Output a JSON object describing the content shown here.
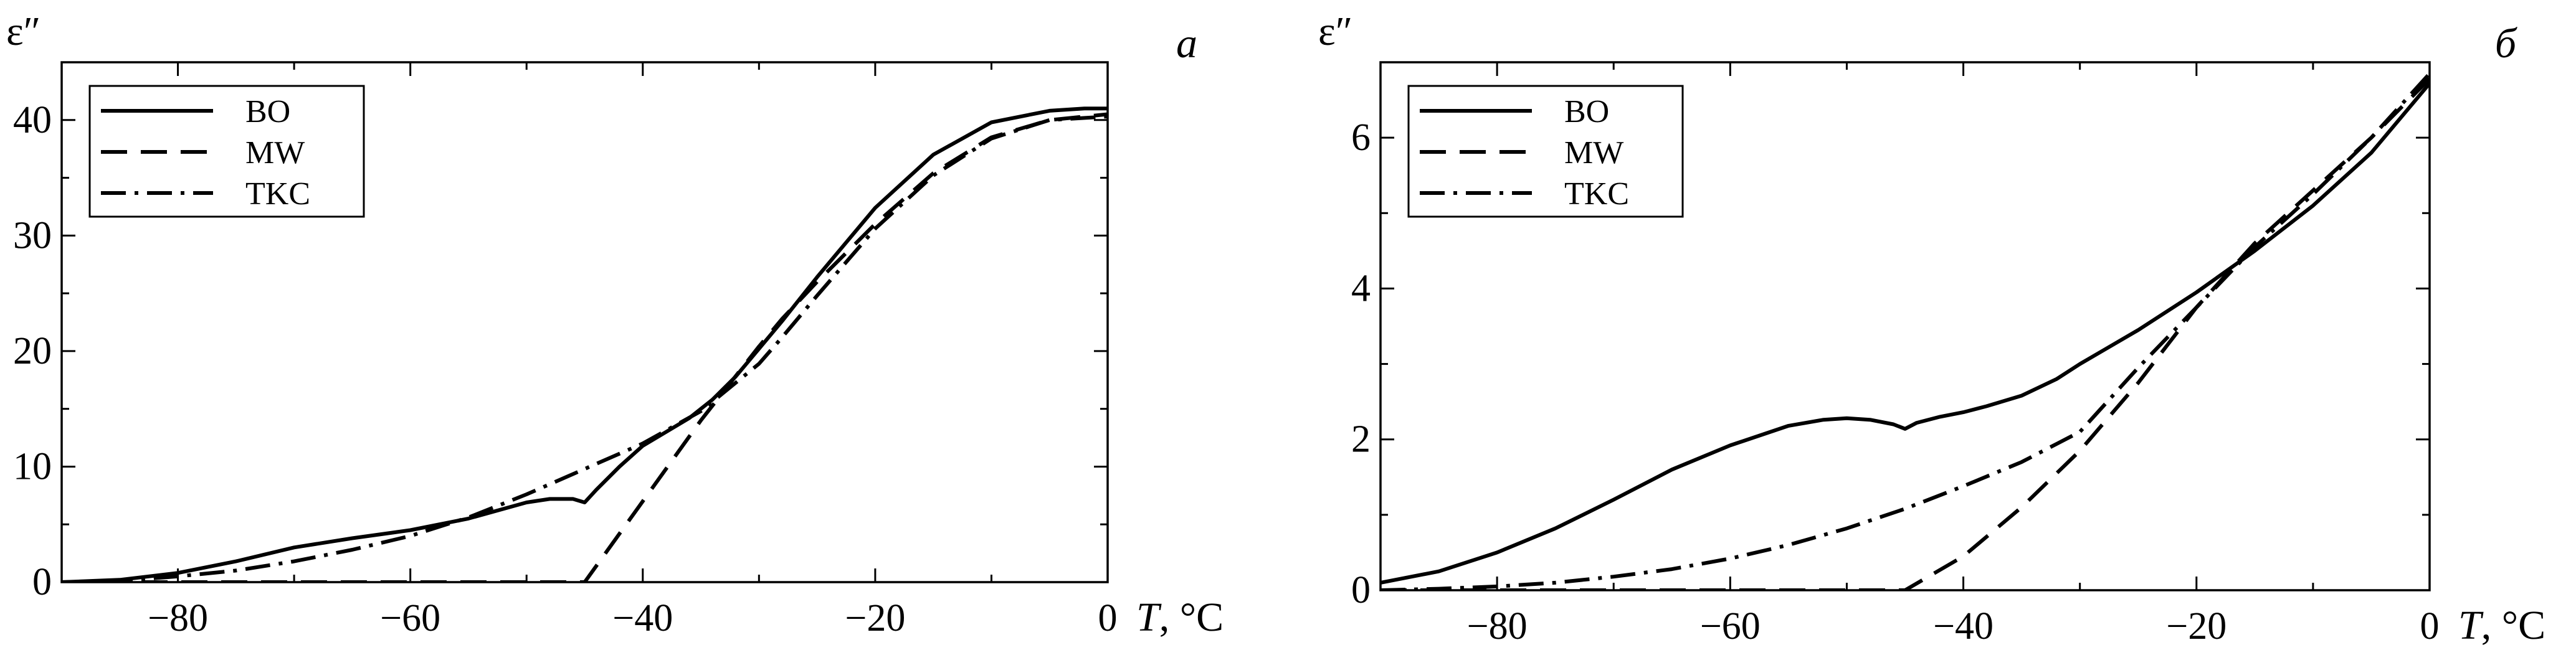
{
  "chart_data": [
    {
      "type": "line",
      "panel_label": "а",
      "ylabel": "ε″",
      "xlabel_symbol": "T",
      "xlabel_unit": ", °C",
      "xlim": [
        -90,
        0
      ],
      "ylim": [
        0,
        45
      ],
      "x_ticks": [
        -80,
        -60,
        -40,
        -20,
        0
      ],
      "x_tick_labels": [
        "−80",
        "−60",
        "−40",
        "−20",
        "0"
      ],
      "y_ticks": [
        0,
        10,
        20,
        30,
        40
      ],
      "y_tick_labels": [
        "0",
        "10",
        "20",
        "30",
        "40"
      ],
      "legend_position": "top-left",
      "series": [
        {
          "name": "BO",
          "dash": "solid",
          "x": [
            -90,
            -85,
            -80,
            -75,
            -70,
            -65,
            -60,
            -55,
            -50,
            -48,
            -46,
            -45,
            -44,
            -42,
            -40,
            -38,
            -36,
            -34,
            -32,
            -30,
            -28,
            -25,
            -22,
            -20,
            -15,
            -10,
            -5,
            -2,
            0
          ],
          "y": [
            0,
            0.2,
            0.8,
            1.8,
            3.0,
            3.8,
            4.5,
            5.5,
            6.9,
            7.2,
            7.2,
            6.9,
            8.0,
            10.0,
            11.8,
            13.0,
            14.2,
            15.8,
            17.8,
            20.2,
            22.6,
            26.4,
            30.0,
            32.4,
            37.0,
            39.8,
            40.8,
            41.0,
            41.0
          ]
        },
        {
          "name": "MW",
          "dash": "dashed",
          "x": [
            -90,
            -80,
            -70,
            -60,
            -50,
            -45,
            -40,
            -35,
            -30,
            -28,
            -25,
            -20,
            -15,
            -10,
            -5,
            0
          ],
          "y": [
            0,
            0,
            0,
            0,
            0,
            0,
            7.0,
            14.0,
            20.4,
            22.8,
            26.0,
            31.0,
            35.4,
            38.5,
            40.0,
            40.5
          ]
        },
        {
          "name": "TKC",
          "dash": "dashdot",
          "x": [
            -90,
            -85,
            -80,
            -75,
            -70,
            -65,
            -60,
            -55,
            -50,
            -45,
            -40,
            -35,
            -30,
            -28,
            -25,
            -20,
            -15,
            -10,
            -5,
            0
          ],
          "y": [
            0,
            0.1,
            0.5,
            1.0,
            1.8,
            2.8,
            4.0,
            5.6,
            7.6,
            9.8,
            12.0,
            14.8,
            18.9,
            21.2,
            24.8,
            30.6,
            35.2,
            38.4,
            40.0,
            40.3
          ]
        }
      ]
    },
    {
      "type": "line",
      "panel_label": "б",
      "ylabel": "ε″",
      "xlabel_symbol": "T",
      "xlabel_unit": ", °C",
      "xlim": [
        -90,
        0
      ],
      "ylim": [
        0,
        7
      ],
      "x_ticks": [
        -80,
        -60,
        -40,
        -20,
        0
      ],
      "x_tick_labels": [
        "−80",
        "−60",
        "−40",
        "−20",
        "0"
      ],
      "y_ticks": [
        0,
        2,
        4,
        6
      ],
      "y_tick_labels": [
        "0",
        "2",
        "4",
        "6"
      ],
      "legend_position": "top-left",
      "series": [
        {
          "name": "BO",
          "dash": "solid",
          "x": [
            -90,
            -85,
            -80,
            -75,
            -70,
            -65,
            -60,
            -55,
            -52,
            -50,
            -48,
            -46,
            -45,
            -44,
            -42,
            -40,
            -38,
            -35,
            -32,
            -30,
            -28,
            -25,
            -20,
            -15,
            -10,
            -5,
            0
          ],
          "y": [
            0.1,
            0.25,
            0.5,
            0.82,
            1.2,
            1.6,
            1.92,
            2.18,
            2.26,
            2.28,
            2.26,
            2.2,
            2.14,
            2.22,
            2.3,
            2.36,
            2.44,
            2.58,
            2.8,
            3.0,
            3.18,
            3.45,
            3.95,
            4.5,
            5.1,
            5.8,
            6.72
          ]
        },
        {
          "name": "MW",
          "dash": "dashed",
          "x": [
            -90,
            -80,
            -70,
            -60,
            -50,
            -45,
            -40,
            -35,
            -30,
            -25,
            -20,
            -15,
            -10,
            -5,
            0
          ],
          "y": [
            0,
            0,
            0,
            0,
            0,
            0,
            0.45,
            1.1,
            1.85,
            2.75,
            3.75,
            4.6,
            5.3,
            6.0,
            6.78
          ]
        },
        {
          "name": "TKC",
          "dash": "dashdot",
          "x": [
            -90,
            -85,
            -80,
            -75,
            -70,
            -65,
            -60,
            -55,
            -50,
            -45,
            -40,
            -35,
            -30,
            -25,
            -20,
            -15,
            -10,
            -5,
            0
          ],
          "y": [
            0,
            0.02,
            0.05,
            0.1,
            0.18,
            0.28,
            0.42,
            0.6,
            0.82,
            1.08,
            1.38,
            1.7,
            2.1,
            2.95,
            3.75,
            4.55,
            5.25,
            6.0,
            6.85
          ]
        }
      ]
    }
  ]
}
